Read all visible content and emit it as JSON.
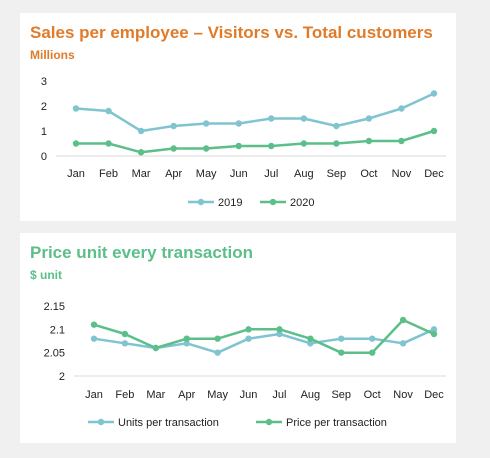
{
  "chart_data": [
    {
      "type": "line",
      "title": "Sales per employee – Visitors vs. Total customers",
      "subtitle": "Millions",
      "title_color": "#e07b2a",
      "categories": [
        "Jan",
        "Feb",
        "Mar",
        "Apr",
        "May",
        "Jun",
        "Jul",
        "Aug",
        "Sep",
        "Oct",
        "Nov",
        "Dec"
      ],
      "series": [
        {
          "name": "2019",
          "color": "#7fc4d0",
          "values": [
            1.9,
            1.8,
            1.0,
            1.2,
            1.3,
            1.3,
            1.5,
            1.5,
            1.2,
            1.5,
            1.9,
            2.5
          ]
        },
        {
          "name": "2020",
          "color": "#5cbf8a",
          "values": [
            0.5,
            0.5,
            0.15,
            0.3,
            0.3,
            0.4,
            0.4,
            0.5,
            0.5,
            0.6,
            0.6,
            1.0
          ]
        }
      ],
      "ylim": [
        0,
        3
      ],
      "yticks": [
        "0",
        "1",
        "2",
        "3"
      ],
      "ytick_values": [
        0,
        1,
        2,
        3
      ],
      "grid": false,
      "legend": "bottom"
    },
    {
      "type": "line",
      "title": "Price unit every transaction",
      "subtitle": "$ unit",
      "title_color": "#5cbf8a",
      "categories": [
        "Jan",
        "Feb",
        "Mar",
        "Apr",
        "May",
        "Jun",
        "Jul",
        "Aug",
        "Sep",
        "Oct",
        "Nov",
        "Dec"
      ],
      "series": [
        {
          "name": "Units per transaction",
          "color": "#7fc4d0",
          "values": [
            2.08,
            2.07,
            2.06,
            2.07,
            2.05,
            2.08,
            2.09,
            2.07,
            2.08,
            2.08,
            2.07,
            2.1
          ]
        },
        {
          "name": "Price per transaction",
          "color": "#5cbf8a",
          "values": [
            2.11,
            2.09,
            2.06,
            2.08,
            2.08,
            2.1,
            2.1,
            2.08,
            2.05,
            2.05,
            2.12,
            2.09
          ]
        }
      ],
      "ylim": [
        2,
        2.15
      ],
      "yticks": [
        "2",
        "2.05",
        "2.1",
        "2.15"
      ],
      "ytick_values": [
        2,
        2.05,
        2.1,
        2.15
      ],
      "grid": false,
      "legend": "bottom"
    }
  ]
}
